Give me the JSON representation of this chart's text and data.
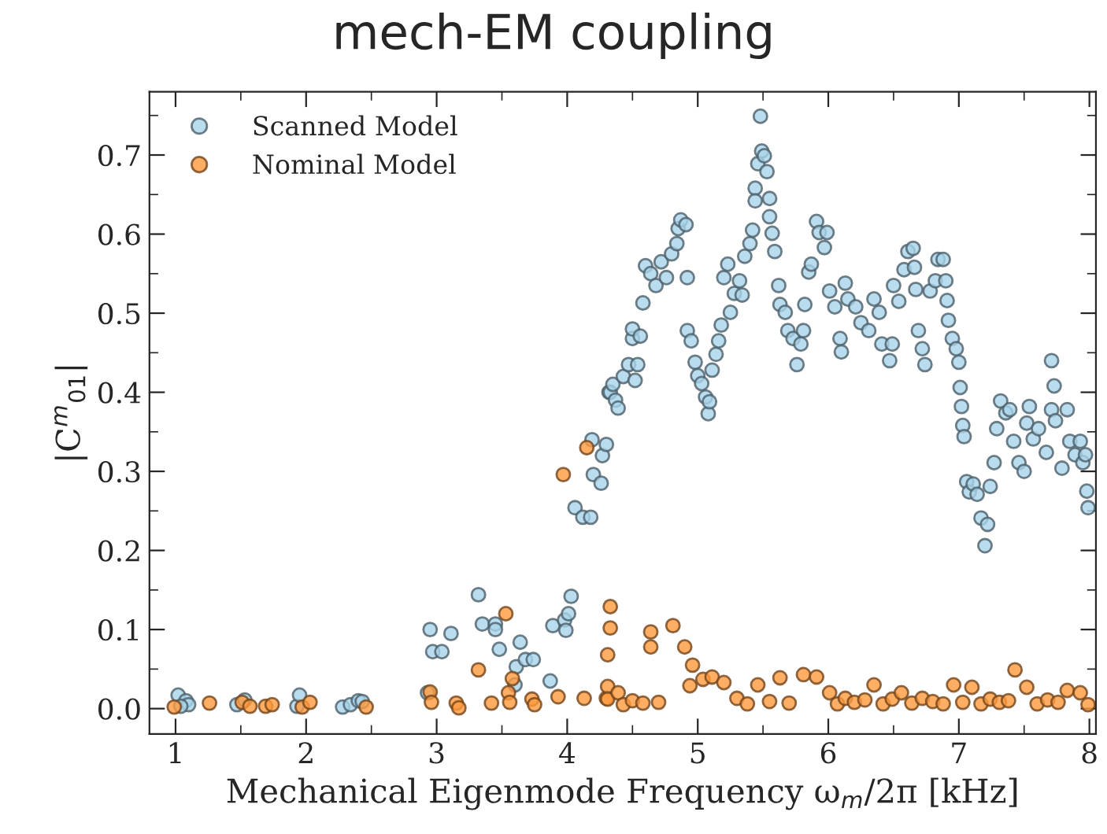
{
  "chart_data": {
    "type": "scatter",
    "title": "mech-EM coupling",
    "xlabel": "Mechanical Eigenmode Frequency ω$_{m}$/2π [kHz]",
    "ylabel": "|C$^{m}$$_{01}$|",
    "xlim": [
      0.8,
      8.05
    ],
    "ylim": [
      -0.032,
      0.78
    ],
    "xticks": [
      1,
      2,
      3,
      4,
      5,
      6,
      7,
      8
    ],
    "yticks": [
      {
        "value": 0,
        "label": "0.0"
      },
      {
        "value": 0.1,
        "label": "0.1"
      },
      {
        "value": 0.2,
        "label": "0.2"
      },
      {
        "value": 0.3,
        "label": "0.3"
      },
      {
        "value": 0.4,
        "label": "0.4"
      },
      {
        "value": 0.5,
        "label": "0.5"
      },
      {
        "value": 0.6,
        "label": "0.6"
      },
      {
        "value": 0.7,
        "label": "0.7"
      }
    ],
    "grid": false,
    "legend": "top left",
    "marker": "circle",
    "series": [
      {
        "name": "Scanned Model",
        "color": "#a8d4ea",
        "x": [
          1.02,
          1.08,
          1.1,
          1.04,
          1.47,
          1.53,
          1.93,
          1.95,
          2.28,
          2.34,
          2.4,
          2.43,
          2.93,
          2.95,
          2.97,
          3.04,
          3.11,
          3.32,
          3.35,
          3.45,
          3.45,
          3.48,
          3.64,
          3.61,
          3.6,
          3.68,
          3.74,
          3.87,
          3.89,
          3.98,
          3.99,
          4.01,
          4.03,
          4.06,
          4.12,
          4.18,
          4.19,
          4.2,
          4.26,
          4.27,
          4.3,
          4.32,
          4.33,
          4.37,
          4.39,
          4.35,
          4.43,
          4.47,
          4.52,
          4.54,
          4.5,
          4.5,
          4.56,
          4.58,
          4.6,
          4.64,
          4.68,
          4.72,
          4.76,
          4.8,
          4.84,
          4.85,
          4.87,
          4.91,
          4.92,
          4.92,
          4.95,
          4.98,
          5.0,
          5.03,
          5.06,
          5.08,
          5.09,
          5.11,
          5.14,
          5.16,
          5.18,
          5.2,
          5.23,
          5.25,
          5.28,
          5.32,
          5.34,
          5.36,
          5.4,
          5.42,
          5.44,
          5.44,
          5.46,
          5.48,
          5.49,
          5.51,
          5.53,
          5.55,
          5.55,
          5.57,
          5.59,
          5.62,
          5.63,
          5.67,
          5.69,
          5.73,
          5.76,
          5.79,
          5.81,
          5.82,
          5.85,
          5.87,
          5.91,
          5.93,
          5.97,
          5.99,
          6.01,
          6.05,
          6.09,
          6.1,
          6.13,
          6.15,
          6.21,
          6.25,
          6.31,
          6.35,
          6.39,
          6.41,
          6.47,
          6.49,
          6.5,
          6.54,
          6.58,
          6.61,
          6.65,
          6.66,
          6.67,
          6.69,
          6.72,
          6.74,
          6.78,
          6.82,
          6.84,
          6.88,
          6.9,
          6.91,
          6.92,
          6.95,
          6.98,
          7.0,
          7.01,
          7.02,
          7.03,
          7.04,
          7.06,
          7.08,
          7.11,
          7.14,
          7.17,
          7.2,
          7.22,
          7.24,
          7.27,
          7.29,
          7.32,
          7.36,
          7.39,
          7.42,
          7.46,
          7.5,
          7.52,
          7.54,
          7.57,
          7.61,
          7.67,
          7.71,
          7.73,
          7.71,
          7.74,
          7.79,
          7.83,
          7.85,
          7.89,
          7.93,
          7.95,
          7.97,
          7.98,
          7.99
        ],
        "values": [
          0.017,
          0.01,
          0.005,
          0.003,
          0.005,
          0.011,
          0.003,
          0.017,
          0.002,
          0.005,
          0.01,
          0.009,
          0.02,
          0.1,
          0.072,
          0.072,
          0.095,
          0.144,
          0.107,
          0.107,
          0.1,
          0.075,
          0.084,
          0.053,
          0.03,
          0.062,
          0.062,
          0.035,
          0.105,
          0.112,
          0.099,
          0.12,
          0.142,
          0.254,
          0.242,
          0.242,
          0.34,
          0.296,
          0.285,
          0.32,
          0.334,
          0.4,
          0.4,
          0.39,
          0.38,
          0.41,
          0.42,
          0.435,
          0.415,
          0.435,
          0.468,
          0.48,
          0.471,
          0.513,
          0.56,
          0.55,
          0.535,
          0.565,
          0.545,
          0.575,
          0.588,
          0.607,
          0.618,
          0.612,
          0.545,
          0.478,
          0.465,
          0.438,
          0.421,
          0.411,
          0.394,
          0.373,
          0.388,
          0.428,
          0.448,
          0.465,
          0.485,
          0.545,
          0.562,
          0.501,
          0.525,
          0.541,
          0.523,
          0.572,
          0.588,
          0.605,
          0.658,
          0.642,
          0.689,
          0.749,
          0.705,
          0.699,
          0.679,
          0.645,
          0.622,
          0.601,
          0.578,
          0.535,
          0.511,
          0.501,
          0.478,
          0.468,
          0.435,
          0.461,
          0.478,
          0.511,
          0.552,
          0.562,
          0.616,
          0.602,
          0.583,
          0.602,
          0.528,
          0.508,
          0.468,
          0.451,
          0.538,
          0.518,
          0.508,
          0.488,
          0.478,
          0.518,
          0.501,
          0.461,
          0.44,
          0.461,
          0.535,
          0.515,
          0.555,
          0.578,
          0.582,
          0.558,
          0.53,
          0.478,
          0.455,
          0.435,
          0.528,
          0.541,
          0.568,
          0.568,
          0.541,
          0.516,
          0.491,
          0.468,
          0.455,
          0.438,
          0.406,
          0.382,
          0.358,
          0.344,
          0.287,
          0.274,
          0.284,
          0.271,
          0.241,
          0.206,
          0.233,
          0.281,
          0.311,
          0.354,
          0.389,
          0.374,
          0.378,
          0.338,
          0.311,
          0.3,
          0.361,
          0.382,
          0.341,
          0.354,
          0.324,
          0.44,
          0.408,
          0.378,
          0.364,
          0.304,
          0.378,
          0.338,
          0.321,
          0.338,
          0.311,
          0.321,
          0.275,
          0.254
        ]
      },
      {
        "name": "Nominal Model",
        "color": "#ff9a3c",
        "x": [
          0.99,
          1.26,
          1.51,
          1.57,
          1.69,
          1.74,
          1.97,
          2.03,
          2.46,
          2.95,
          2.96,
          3.15,
          3.17,
          3.32,
          3.42,
          3.53,
          3.55,
          3.56,
          3.58,
          3.73,
          3.75,
          3.93,
          3.97,
          4.13,
          4.15,
          4.3,
          4.33,
          4.33,
          4.31,
          4.31,
          4.31,
          4.39,
          4.43,
          4.5,
          4.58,
          4.64,
          4.64,
          4.7,
          4.81,
          4.9,
          4.96,
          4.94,
          5.04,
          5.11,
          5.2,
          5.3,
          5.38,
          5.46,
          5.55,
          5.63,
          5.7,
          5.81,
          5.91,
          6.01,
          6.07,
          6.13,
          6.2,
          6.28,
          6.35,
          6.42,
          6.49,
          6.56,
          6.64,
          6.72,
          6.8,
          6.88,
          6.96,
          7.03,
          7.1,
          7.17,
          7.24,
          7.31,
          7.38,
          7.43,
          7.52,
          7.6,
          7.68,
          7.76,
          7.83,
          7.93,
          7.99
        ],
        "values": [
          0.002,
          0.007,
          0.008,
          0.003,
          0.003,
          0.005,
          0.002,
          0.008,
          0.002,
          0.021,
          0.008,
          0.007,
          0.001,
          0.049,
          0.007,
          0.12,
          0.02,
          0.008,
          0.038,
          0.012,
          0.005,
          0.015,
          0.296,
          0.013,
          0.33,
          0.013,
          0.129,
          0.102,
          0.068,
          0.028,
          0.012,
          0.02,
          0.005,
          0.01,
          0.007,
          0.097,
          0.078,
          0.008,
          0.105,
          0.078,
          0.055,
          0.029,
          0.037,
          0.04,
          0.033,
          0.013,
          0.006,
          0.03,
          0.009,
          0.039,
          0.007,
          0.043,
          0.04,
          0.02,
          0.006,
          0.013,
          0.008,
          0.011,
          0.03,
          0.006,
          0.012,
          0.02,
          0.007,
          0.013,
          0.009,
          0.006,
          0.03,
          0.008,
          0.027,
          0.006,
          0.012,
          0.008,
          0.01,
          0.049,
          0.027,
          0.006,
          0.011,
          0.008,
          0.023,
          0.02,
          0.005
        ]
      }
    ]
  }
}
